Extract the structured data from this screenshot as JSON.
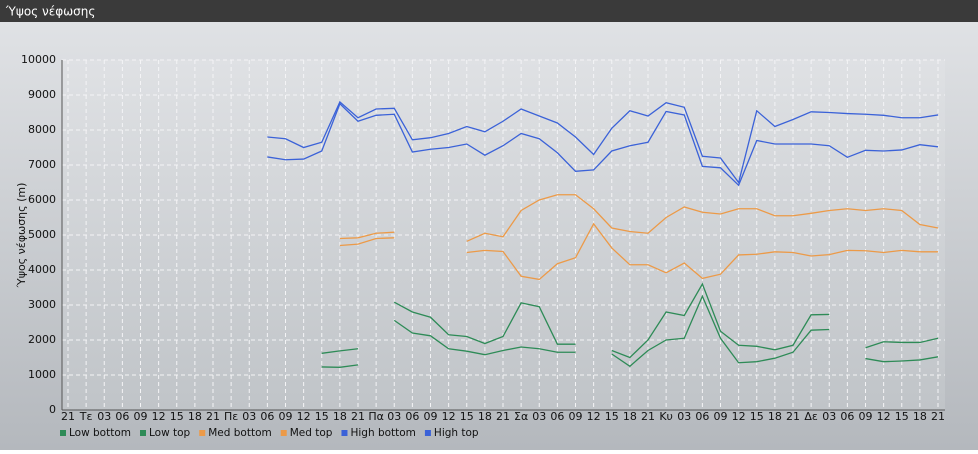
{
  "chart_data": {
    "type": "line",
    "title": "Ύψος νέφωσης",
    "ylabel": "Ύψος νέφωσης (m)",
    "categories": [
      "21",
      "Τε",
      "03",
      "06",
      "09",
      "12",
      "15",
      "18",
      "21",
      "Πε",
      "03",
      "06",
      "09",
      "12",
      "15",
      "18",
      "21",
      "Πα",
      "03",
      "06",
      "09",
      "12",
      "15",
      "18",
      "21",
      "Σα",
      "03",
      "06",
      "09",
      "12",
      "15",
      "18",
      "21",
      "Κυ",
      "03",
      "06",
      "09",
      "12",
      "15",
      "18",
      "21",
      "Δε",
      "03",
      "06",
      "09",
      "12",
      "15",
      "18",
      "21"
    ],
    "ylim": [
      0,
      10000
    ],
    "yticks": [
      0,
      1000,
      2000,
      3000,
      4000,
      5000,
      6000,
      7000,
      8000,
      9000,
      10000
    ],
    "grid": true,
    "legend": "bottom",
    "series": [
      {
        "name": "Low bottom",
        "color": "#2e8b57",
        "values": [
          null,
          null,
          null,
          null,
          null,
          null,
          null,
          null,
          null,
          null,
          null,
          null,
          null,
          null,
          1230,
          1220,
          1290,
          null,
          2560,
          2200,
          2120,
          1750,
          1680,
          1580,
          1700,
          1800,
          1750,
          1650,
          1650,
          null,
          1600,
          1250,
          1700,
          2000,
          2050,
          3250,
          2050,
          1350,
          1380,
          1480,
          1650,
          2280,
          2300,
          null,
          1470,
          1380,
          1400,
          1430,
          1520
        ]
      },
      {
        "name": "Low top",
        "color": "#2e8b57",
        "values": [
          null,
          null,
          null,
          null,
          null,
          null,
          null,
          null,
          null,
          null,
          null,
          null,
          null,
          null,
          1620,
          1690,
          1750,
          null,
          3080,
          2800,
          2650,
          2150,
          2100,
          1900,
          2100,
          3060,
          2950,
          1880,
          1880,
          null,
          1700,
          1500,
          2000,
          2800,
          2700,
          3600,
          2250,
          1850,
          1820,
          1720,
          1850,
          2720,
          2730,
          null,
          1780,
          1950,
          1930,
          1930,
          2050
        ]
      },
      {
        "name": "Med bottom",
        "color": "#ec9a48",
        "values": [
          null,
          null,
          null,
          null,
          null,
          null,
          null,
          null,
          null,
          null,
          null,
          null,
          null,
          null,
          null,
          4700,
          4740,
          4900,
          4920,
          null,
          null,
          null,
          4500,
          4560,
          4530,
          3820,
          3730,
          4180,
          4350,
          5320,
          4630,
          4150,
          4150,
          3920,
          4200,
          3760,
          3880,
          4430,
          4450,
          4520,
          4500,
          4400,
          4440,
          4560,
          4550,
          4500,
          4560,
          4520,
          4520
        ]
      },
      {
        "name": "Med top",
        "color": "#ec9a48",
        "values": [
          null,
          null,
          null,
          null,
          null,
          null,
          null,
          null,
          null,
          null,
          null,
          null,
          null,
          null,
          null,
          4900,
          4920,
          5050,
          5080,
          null,
          null,
          null,
          4820,
          5050,
          4950,
          5700,
          6000,
          6150,
          6150,
          5750,
          5200,
          5100,
          5050,
          5500,
          5800,
          5650,
          5600,
          5750,
          5750,
          5550,
          5550,
          5620,
          5700,
          5750,
          5700,
          5750,
          5700,
          5300,
          5200
        ]
      },
      {
        "name": "High bottom",
        "color": "#3b62d8",
        "values": [
          null,
          null,
          null,
          null,
          null,
          null,
          null,
          null,
          null,
          null,
          null,
          7230,
          7150,
          7170,
          7400,
          8750,
          8250,
          8420,
          8450,
          7370,
          7450,
          7500,
          7600,
          7280,
          7550,
          7900,
          7750,
          7350,
          6820,
          6860,
          7400,
          7550,
          7650,
          8530,
          8430,
          6960,
          6920,
          6420,
          7700,
          7600,
          7600,
          7600,
          7550,
          7220,
          7420,
          7400,
          7430,
          7580,
          7520
        ]
      },
      {
        "name": "High top",
        "color": "#3b62d8",
        "values": [
          null,
          null,
          null,
          null,
          null,
          null,
          null,
          null,
          null,
          null,
          null,
          7800,
          7750,
          7500,
          7650,
          8800,
          8350,
          8600,
          8620,
          7720,
          7780,
          7900,
          8100,
          7950,
          8250,
          8600,
          8400,
          8200,
          7800,
          7300,
          8050,
          8550,
          8400,
          8780,
          8650,
          7250,
          7200,
          6500,
          8550,
          8100,
          8300,
          8520,
          8500,
          8470,
          8450,
          8420,
          8350,
          8350,
          8430
        ]
      }
    ]
  }
}
